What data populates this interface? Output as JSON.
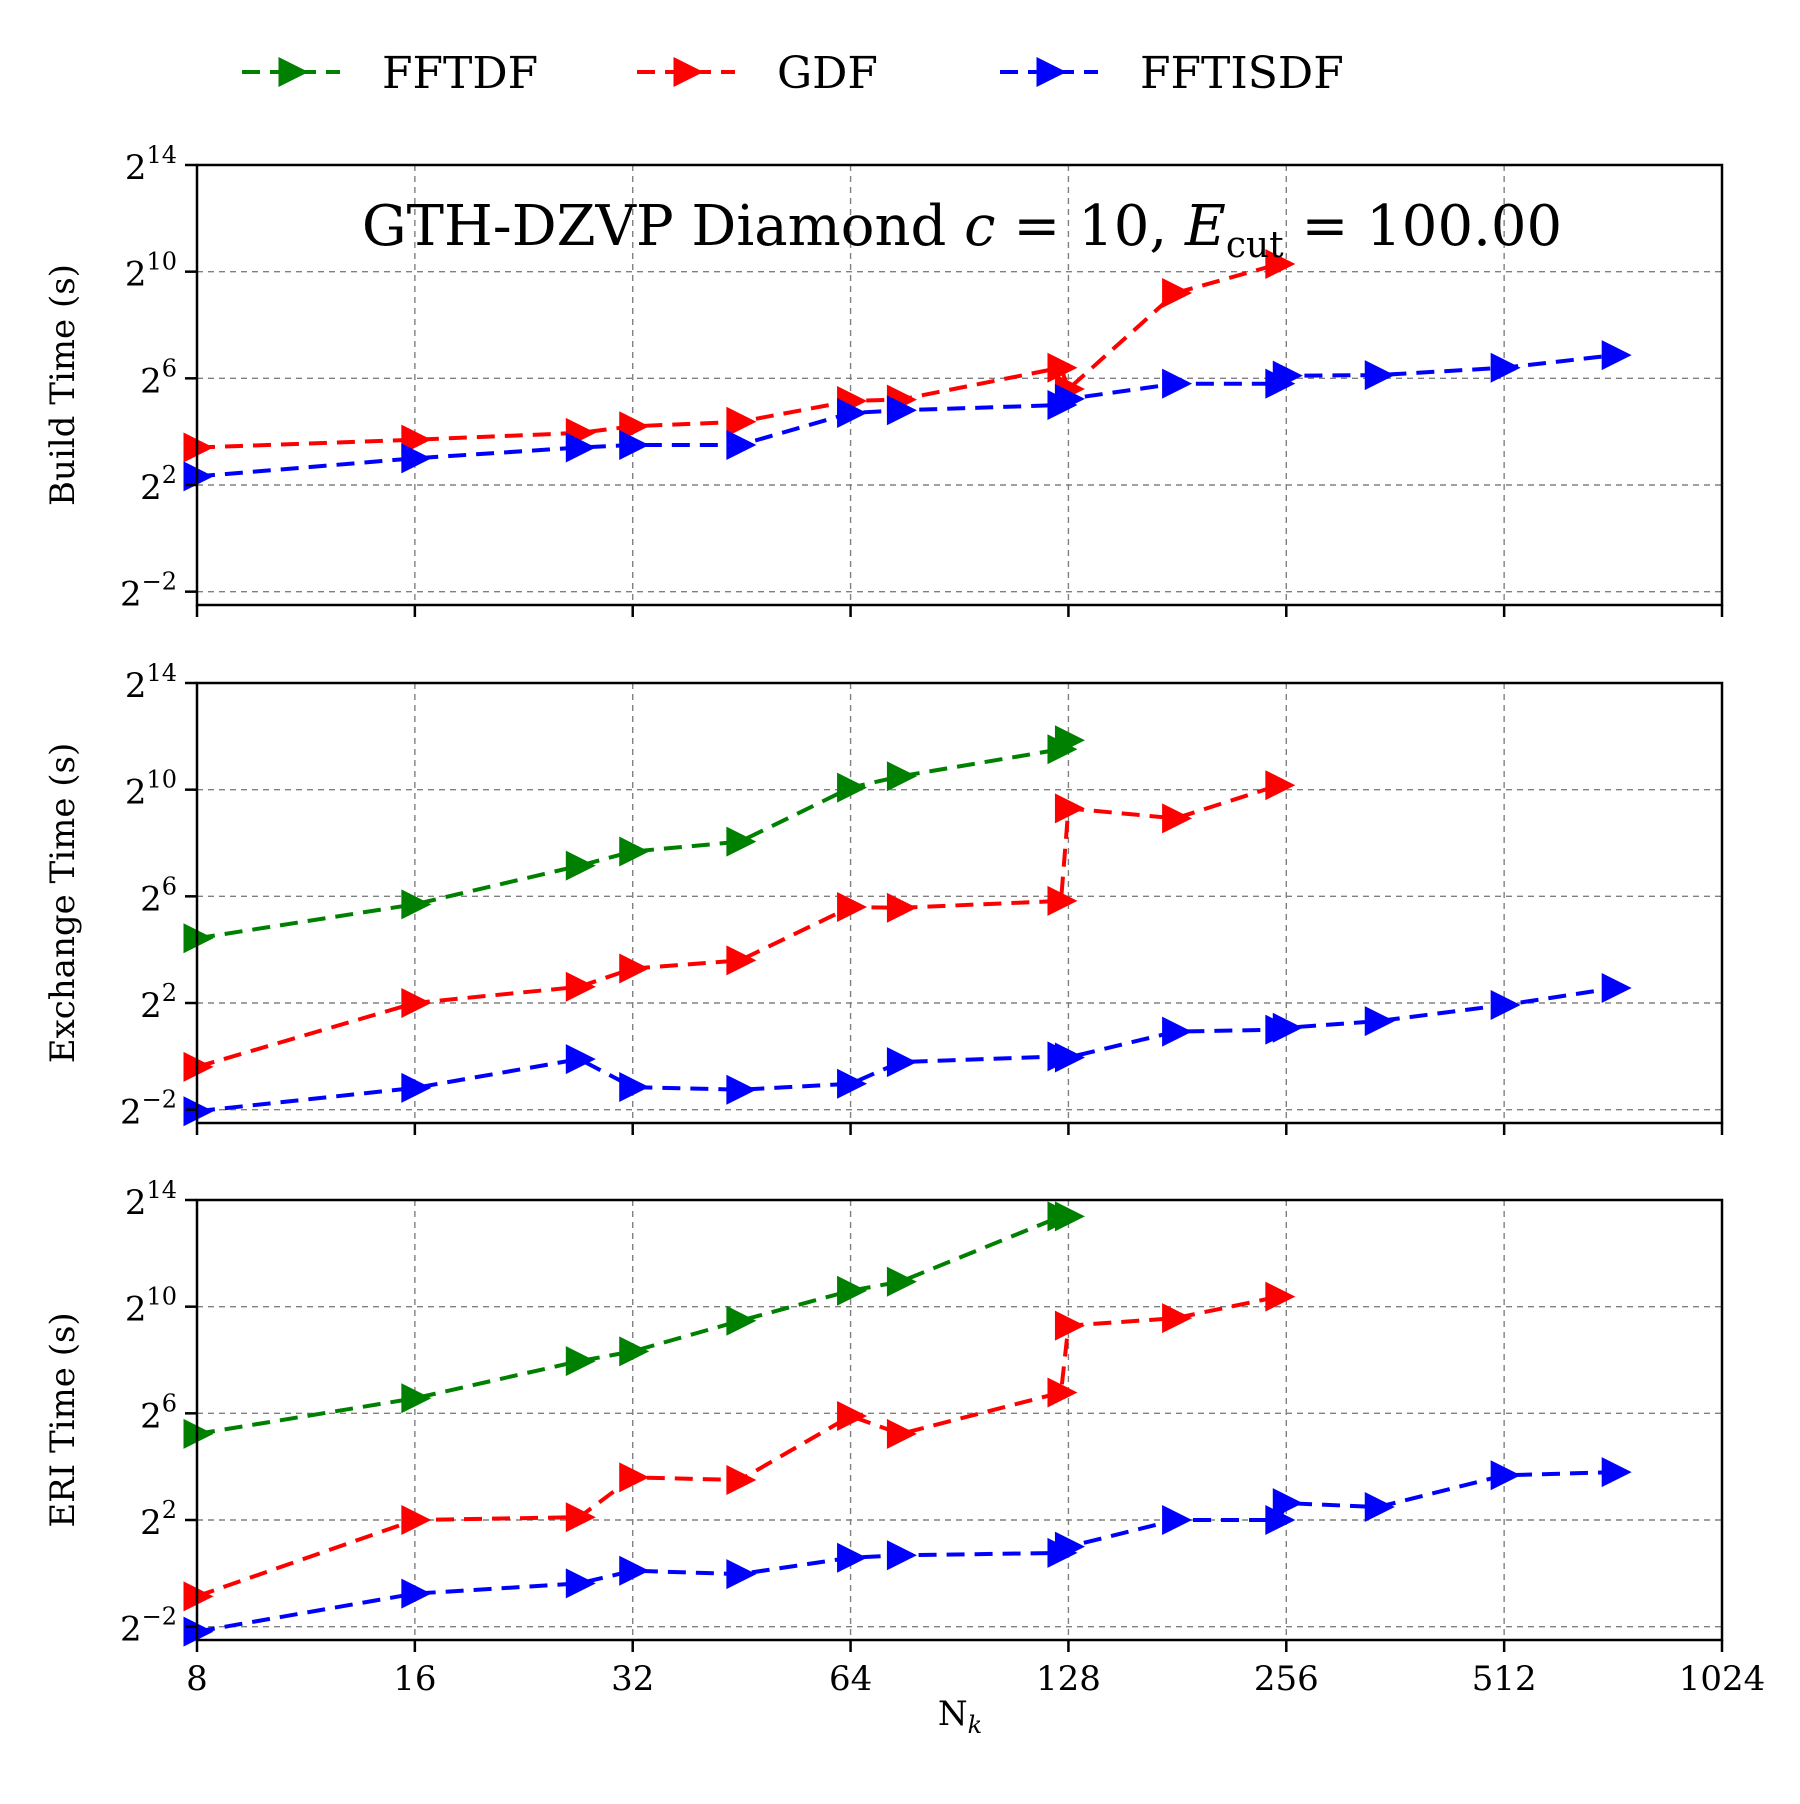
{
  "chart_data": {
    "type": "line",
    "title": "GTH-DZVP Diamond c = 10, E_cut = 100.00",
    "title_parts": {
      "main": "GTH-DZVP Diamond ",
      "c_var": "c",
      "c_rest": " = 10, ",
      "e_var": "E",
      "e_sub": "cut",
      "e_rest": " = 100.00"
    },
    "xlabel": "N_k",
    "xlabel_parts": {
      "main": "N",
      "sub": "k"
    },
    "x_scale": "log2",
    "xlim": [
      8,
      1024
    ],
    "xticks": [
      8,
      16,
      32,
      64,
      128,
      256,
      512,
      1024
    ],
    "xtick_labels": [
      "8",
      "16",
      "32",
      "64",
      "128",
      "256",
      "512",
      "1024"
    ],
    "y_scale": "log2",
    "ylim_log2": [
      -2.5,
      14
    ],
    "yticks_exp": [
      -2,
      2,
      6,
      10,
      14
    ],
    "ytick_base": "2",
    "ytick_sups": [
      "−2",
      "2",
      "6",
      "10",
      "14"
    ],
    "grid": true,
    "legend": {
      "position": "top",
      "entries": [
        "FFTDF",
        "GDF",
        "FFTISDF"
      ]
    },
    "colors": {
      "FFTDF": "#008000",
      "GDF": "#ff0000",
      "FFTISDF": "#0000ff",
      "grid": "#808080"
    },
    "marker": "right-triangle",
    "line_style": "dashed",
    "panels": [
      {
        "ylabel": "Build Time (s)",
        "show_title": true,
        "series": [
          {
            "name": "GDF",
            "points": [
              [
                8,
                10.6
              ],
              [
                16,
                13.0
              ],
              [
                27,
                15.5
              ],
              [
                32,
                18.4
              ],
              [
                45,
                20.7
              ],
              [
                64,
                35.5
              ],
              [
                75,
                36.8
              ],
              [
                125,
                84.4
              ],
              [
                128,
                48.5
              ],
              [
                180,
                588
              ],
              [
                250,
                1250
              ]
            ]
          },
          {
            "name": "FFTISDF",
            "points": [
              [
                8,
                5.0
              ],
              [
                16,
                8.0
              ],
              [
                27,
                10.6
              ],
              [
                32,
                11.3
              ],
              [
                45,
                11.3
              ],
              [
                64,
                26.0
              ],
              [
                75,
                27.9
              ],
              [
                125,
                32.0
              ],
              [
                128,
                37.5
              ],
              [
                180,
                55.7
              ],
              [
                250,
                55.7
              ],
              [
                256,
                68.6
              ],
              [
                343,
                69.6
              ],
              [
                512,
                84.4
              ],
              [
                729,
                117
              ]
            ]
          }
        ]
      },
      {
        "ylabel": "Exchange Time (s)",
        "show_title": false,
        "series": [
          {
            "name": "FFTDF",
            "points": [
              [
                8,
                21.5
              ],
              [
                16,
                52.0
              ],
              [
                27,
                142
              ],
              [
                32,
                205
              ],
              [
                45,
                265
              ],
              [
                64,
                1079
              ],
              [
                75,
                1450
              ],
              [
                125,
                2930
              ],
              [
                128,
                3700
              ]
            ]
          },
          {
            "name": "GDF",
            "points": [
              [
                8,
                0.76
              ],
              [
                16,
                4.0
              ],
              [
                27,
                6.1
              ],
              [
                32,
                9.8
              ],
              [
                45,
                12.1
              ],
              [
                64,
                48.5
              ],
              [
                75,
                47.5
              ],
              [
                125,
                56.8
              ],
              [
                128,
                630
              ],
              [
                180,
                485
              ],
              [
                250,
                1150
              ]
            ]
          },
          {
            "name": "FFTISDF",
            "points": [
              [
                8,
                0.24
              ],
              [
                16,
                0.44
              ],
              [
                27,
                0.93
              ],
              [
                32,
                0.45
              ],
              [
                45,
                0.42
              ],
              [
                64,
                0.49
              ],
              [
                75,
                0.86
              ],
              [
                125,
                1.0
              ],
              [
                128,
                0.97
              ],
              [
                180,
                1.9
              ],
              [
                250,
                2.0
              ],
              [
                256,
                2.1
              ],
              [
                343,
                2.5
              ],
              [
                512,
                3.8
              ],
              [
                729,
                5.9
              ]
            ]
          }
        ]
      },
      {
        "ylabel": "ERI Time (s)",
        "show_title": false,
        "series": [
          {
            "name": "FFTDF",
            "points": [
              [
                8,
                37.5
              ],
              [
                16,
                94.7
              ],
              [
                27,
                249
              ],
              [
                32,
                320
              ],
              [
                45,
                710
              ],
              [
                64,
                1550
              ],
              [
                75,
                1960
              ],
              [
                125,
                10700
              ],
              [
                128,
                10700
              ]
            ]
          },
          {
            "name": "GDF",
            "points": [
              [
                8,
                0.55
              ],
              [
                16,
                4.0
              ],
              [
                27,
                4.3
              ],
              [
                32,
                12.1
              ],
              [
                45,
                11.3
              ],
              [
                64,
                59.7
              ],
              [
                75,
                37.5
              ],
              [
                125,
                110
              ],
              [
                128,
                625
              ],
              [
                180,
                760
              ],
              [
                250,
                1330
              ]
            ]
          },
          {
            "name": "FFTISDF",
            "points": [
              [
                8,
                0.22
              ],
              [
                16,
                0.59
              ],
              [
                27,
                0.77
              ],
              [
                32,
                1.07
              ],
              [
                45,
                0.98
              ],
              [
                64,
                1.5
              ],
              [
                75,
                1.6
              ],
              [
                125,
                1.7
              ],
              [
                128,
                2.0
              ],
              [
                180,
                4.0
              ],
              [
                250,
                4.0
              ],
              [
                256,
                6.2
              ],
              [
                343,
                5.6
              ],
              [
                512,
                12.8
              ],
              [
                729,
                13.9
              ]
            ]
          }
        ]
      }
    ]
  }
}
